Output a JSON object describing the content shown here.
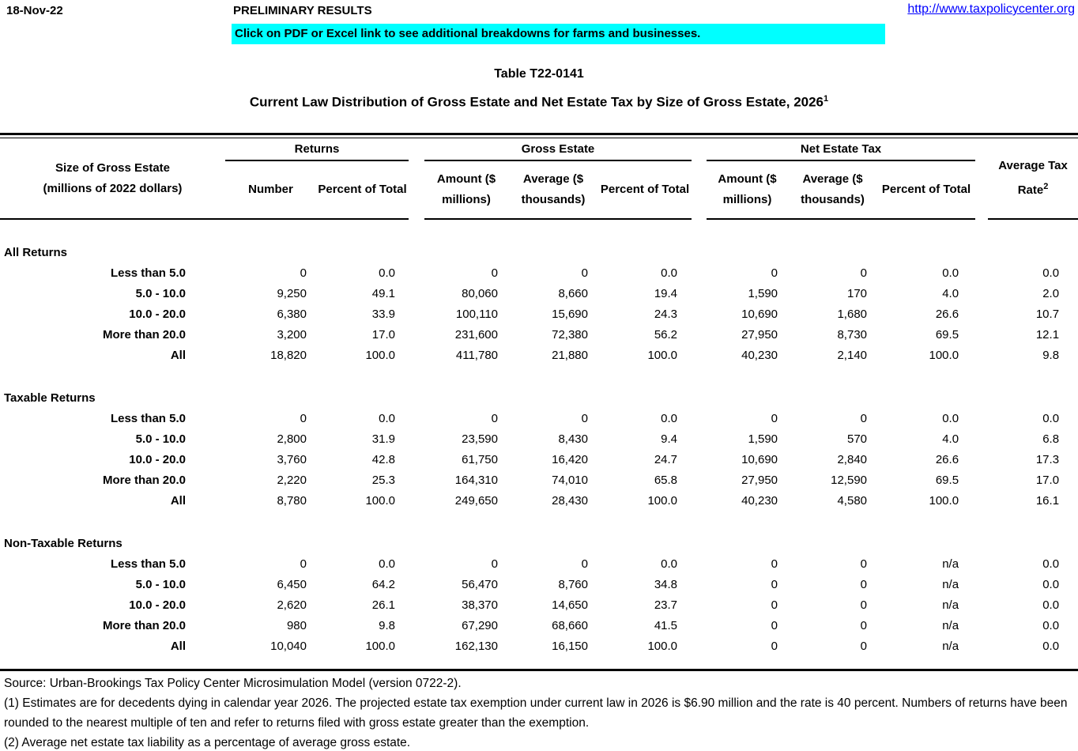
{
  "header": {
    "date": "18-Nov-22",
    "preliminary": "PRELIMINARY RESULTS",
    "banner_text": "Click on PDF or Excel link to see additional breakdowns for farms and businesses.",
    "banner_bg": "#00FFFF",
    "url": "http://www.taxpolicycenter.org",
    "link_color": "#0000FF"
  },
  "title": "Table T22-0141",
  "subtitle": "Current Law Distribution of Gross Estate and Net Estate Tax by Size of Gross Estate, 2026",
  "subtitle_superscript": "1",
  "table": {
    "col1_header": "Size of Gross Estate",
    "col1_subheader": "(millions of 2022 dollars)",
    "groups": [
      {
        "label": "Returns",
        "cols": [
          "Number",
          "Percent of Total"
        ]
      },
      {
        "label": "Gross Estate",
        "cols": [
          "Amount ($ millions)",
          "Average ($ thousands)",
          "Percent of Total"
        ]
      },
      {
        "label": "Net Estate Tax",
        "cols": [
          "Amount ($ millions)",
          "Average ($ thousands)",
          "Percent of Total"
        ]
      }
    ],
    "last_col_header": "Average Tax Rate",
    "last_col_superscript": "2",
    "sections": [
      {
        "name": "All Returns",
        "rows": [
          {
            "label": "Less than 5.0",
            "values": [
              "0",
              "0.0",
              "0",
              "0",
              "0.0",
              "0",
              "0",
              "0.0",
              "0.0"
            ]
          },
          {
            "label": "5.0 - 10.0",
            "values": [
              "9,250",
              "49.1",
              "80,060",
              "8,660",
              "19.4",
              "1,590",
              "170",
              "4.0",
              "2.0"
            ]
          },
          {
            "label": "10.0 - 20.0",
            "values": [
              "6,380",
              "33.9",
              "100,110",
              "15,690",
              "24.3",
              "10,690",
              "1,680",
              "26.6",
              "10.7"
            ]
          },
          {
            "label": "More than 20.0",
            "values": [
              "3,200",
              "17.0",
              "231,600",
              "72,380",
              "56.2",
              "27,950",
              "8,730",
              "69.5",
              "12.1"
            ]
          },
          {
            "label": "All",
            "values": [
              "18,820",
              "100.0",
              "411,780",
              "21,880",
              "100.0",
              "40,230",
              "2,140",
              "100.0",
              "9.8"
            ]
          }
        ]
      },
      {
        "name": "Taxable Returns",
        "rows": [
          {
            "label": "Less than 5.0",
            "values": [
              "0",
              "0.0",
              "0",
              "0",
              "0.0",
              "0",
              "0",
              "0.0",
              "0.0"
            ]
          },
          {
            "label": "5.0 - 10.0",
            "values": [
              "2,800",
              "31.9",
              "23,590",
              "8,430",
              "9.4",
              "1,590",
              "570",
              "4.0",
              "6.8"
            ]
          },
          {
            "label": "10.0 - 20.0",
            "values": [
              "3,760",
              "42.8",
              "61,750",
              "16,420",
              "24.7",
              "10,690",
              "2,840",
              "26.6",
              "17.3"
            ]
          },
          {
            "label": "More than 20.0",
            "values": [
              "2,220",
              "25.3",
              "164,310",
              "74,010",
              "65.8",
              "27,950",
              "12,590",
              "69.5",
              "17.0"
            ]
          },
          {
            "label": "All",
            "values": [
              "8,780",
              "100.0",
              "249,650",
              "28,430",
              "100.0",
              "40,230",
              "4,580",
              "100.0",
              "16.1"
            ]
          }
        ]
      },
      {
        "name": "Non-Taxable Returns",
        "rows": [
          {
            "label": "Less than 5.0",
            "values": [
              "0",
              "0.0",
              "0",
              "0",
              "0.0",
              "0",
              "0",
              "n/a",
              "0.0"
            ]
          },
          {
            "label": "5.0 - 10.0",
            "values": [
              "6,450",
              "64.2",
              "56,470",
              "8,760",
              "34.8",
              "0",
              "0",
              "n/a",
              "0.0"
            ]
          },
          {
            "label": "10.0 - 20.0",
            "values": [
              "2,620",
              "26.1",
              "38,370",
              "14,650",
              "23.7",
              "0",
              "0",
              "n/a",
              "0.0"
            ]
          },
          {
            "label": "More than 20.0",
            "values": [
              "980",
              "9.8",
              "67,290",
              "68,660",
              "41.5",
              "0",
              "0",
              "n/a",
              "0.0"
            ]
          },
          {
            "label": "All",
            "values": [
              "10,040",
              "100.0",
              "162,130",
              "16,150",
              "100.0",
              "0",
              "0",
              "n/a",
              "0.0"
            ]
          }
        ]
      }
    ]
  },
  "footnotes": [
    "Source: Urban-Brookings Tax Policy Center Microsimulation Model (version 0722-2).",
    "(1) Estimates are for decedents dying in calendar year 2026. The projected estate tax exemption under current law in 2026 is $6.90 million and the rate is 40 percent. Numbers of returns have been rounded to the nearest multiple of ten and refer to returns filed with gross estate greater than the exemption.",
    "(2) Average net estate tax liability as a percentage of average gross estate."
  ]
}
